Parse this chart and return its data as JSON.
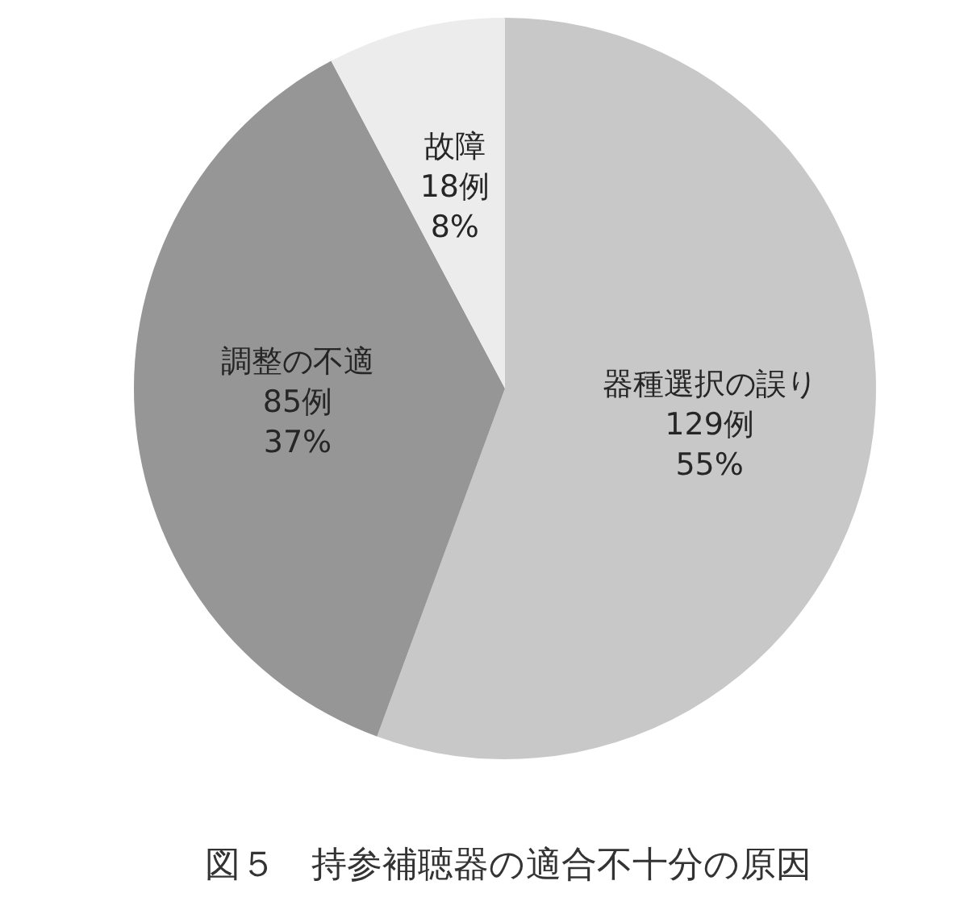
{
  "chart_data": {
    "type": "pie",
    "title": "図５　持参補聴器の適合不十分の原因",
    "categories": [
      "器種選択の誤り",
      "調整の不適",
      "故障"
    ],
    "values": [
      129,
      85,
      18
    ],
    "value_labels": [
      "129例\n55%",
      "85例\n37%",
      "18例\n8%"
    ],
    "colors": [
      "#c8c8c8",
      "#969696",
      "#ececec"
    ]
  }
}
